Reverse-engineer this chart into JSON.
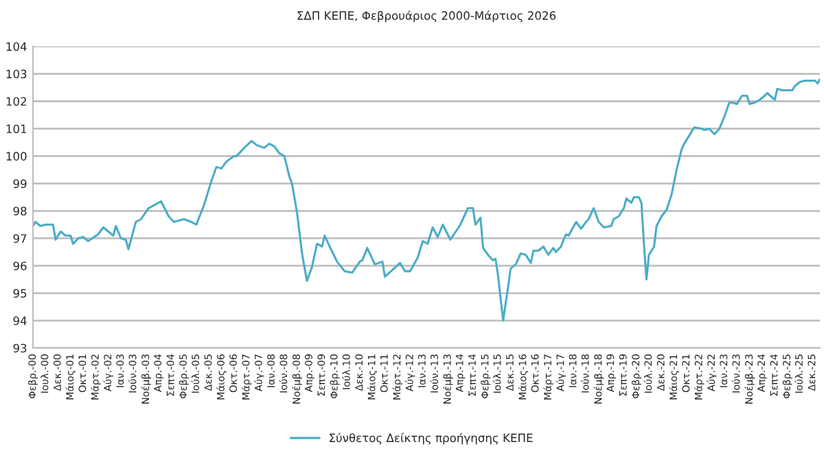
{
  "chart_data": {
    "type": "line",
    "title": "ΣΔΠ ΚΕΠΕ, Φεβρουάριος 2000-Μάρτιος 2026",
    "x": [
      "2000-02",
      "2000-03",
      "2000-05",
      "2000-07",
      "2000-10",
      "2000-11",
      "2001-01",
      "2001-03",
      "2001-05",
      "2001-06",
      "2001-08",
      "2001-10",
      "2001-12",
      "2002-04",
      "2002-06",
      "2002-10",
      "2002-11",
      "2003-01",
      "2003-03",
      "2003-04",
      "2003-07",
      "2003-09",
      "2003-12",
      "2004-02",
      "2004-05",
      "2004-08",
      "2004-10",
      "2005-02",
      "2005-05",
      "2005-07",
      "2005-10",
      "2006-01",
      "2006-03",
      "2006-05",
      "2006-07",
      "2006-10",
      "2006-11",
      "2007-02",
      "2007-05",
      "2007-07",
      "2007-10",
      "2007-12",
      "2008-02",
      "2008-04",
      "2008-06",
      "2008-08",
      "2008-09",
      "2008-11",
      "2009-01",
      "2009-03",
      "2009-05",
      "2009-07",
      "2009-09",
      "2009-10",
      "2009-12",
      "2010-03",
      "2010-06",
      "2010-09",
      "2010-12",
      "2011-01",
      "2011-03",
      "2011-06",
      "2011-09",
      "2011-10",
      "2012-01",
      "2012-04",
      "2012-06",
      "2012-08",
      "2012-11",
      "2013-01",
      "2013-03",
      "2013-05",
      "2013-07",
      "2013-09",
      "2013-12",
      "2014-03",
      "2014-04",
      "2014-07",
      "2014-09",
      "2014-10",
      "2014-12",
      "2015-01",
      "2015-03",
      "2015-05",
      "2015-06",
      "2015-07",
      "2015-09",
      "2015-11",
      "2015-12",
      "2016-02",
      "2016-04",
      "2016-06",
      "2016-08",
      "2016-09",
      "2016-11",
      "2017-01",
      "2017-03",
      "2017-05",
      "2017-06",
      "2017-08",
      "2017-10",
      "2017-11",
      "2018-02",
      "2018-04",
      "2018-06",
      "2018-07",
      "2018-09",
      "2018-11",
      "2019-01",
      "2019-04",
      "2019-05",
      "2019-07",
      "2019-09",
      "2019-10",
      "2019-12",
      "2020-01",
      "2020-03",
      "2020-04",
      "2020-05",
      "2020-06",
      "2020-07",
      "2020-09",
      "2020-10",
      "2020-12",
      "2021-02",
      "2021-04",
      "2021-06",
      "2021-08",
      "2021-09",
      "2021-11",
      "2021-12",
      "2022-01",
      "2022-04",
      "2022-05",
      "2022-07",
      "2022-09",
      "2022-11",
      "2023-01",
      "2023-03",
      "2023-04",
      "2023-06",
      "2023-08",
      "2023-10",
      "2023-11",
      "2024-01",
      "2024-03",
      "2024-05",
      "2024-06",
      "2024-09",
      "2024-10",
      "2024-12",
      "2025-04",
      "2025-05",
      "2025-07",
      "2025-09",
      "2025-11",
      "2026-01",
      "2026-02",
      "2026-03"
    ],
    "series": [
      {
        "name": "Σύνθετος Δείκτης προήγησης ΚΕΠΕ",
        "color": "#4bacc6",
        "values": [
          97.45,
          97.6,
          97.45,
          97.5,
          97.5,
          96.95,
          97.25,
          97.1,
          97.1,
          96.8,
          97.0,
          97.05,
          96.9,
          97.15,
          97.4,
          97.1,
          97.45,
          97.0,
          96.95,
          96.6,
          97.6,
          97.7,
          98.1,
          98.2,
          98.35,
          97.8,
          97.6,
          97.7,
          97.6,
          97.5,
          98.2,
          99.1,
          99.6,
          99.55,
          99.8,
          100.0,
          100.0,
          100.3,
          100.55,
          100.4,
          100.3,
          100.45,
          100.35,
          100.1,
          100.0,
          99.25,
          99.0,
          97.95,
          96.45,
          95.45,
          95.95,
          96.8,
          96.7,
          97.1,
          96.7,
          96.15,
          95.8,
          95.75,
          96.15,
          96.2,
          96.65,
          96.05,
          96.15,
          95.6,
          95.85,
          96.1,
          95.8,
          95.8,
          96.3,
          96.9,
          96.8,
          97.4,
          97.05,
          97.5,
          96.95,
          97.35,
          97.5,
          98.1,
          98.1,
          97.5,
          97.75,
          96.65,
          96.4,
          96.2,
          96.25,
          95.65,
          94.0,
          95.25,
          95.9,
          96.05,
          96.45,
          96.4,
          96.1,
          96.55,
          96.55,
          96.7,
          96.4,
          96.65,
          96.5,
          96.7,
          97.15,
          97.1,
          97.6,
          97.35,
          97.6,
          97.7,
          98.1,
          97.6,
          97.4,
          97.45,
          97.7,
          97.8,
          98.1,
          98.45,
          98.3,
          98.5,
          98.5,
          98.3,
          96.8,
          95.5,
          96.4,
          96.7,
          97.45,
          97.8,
          98.05,
          98.6,
          99.5,
          100.25,
          100.45,
          100.75,
          100.9,
          101.05,
          101.0,
          100.95,
          101.0,
          100.8,
          101.0,
          101.45,
          101.95,
          101.95,
          101.9,
          102.2,
          102.2,
          101.9,
          101.95,
          102.05,
          102.2,
          102.3,
          102.05,
          102.45,
          102.4,
          102.4,
          102.55,
          102.7,
          102.75,
          102.75,
          102.75,
          102.65,
          102.8
        ]
      }
    ],
    "xlim": [
      "2000-02",
      "2026-03"
    ],
    "xticks": [
      {
        "value": "2000-02",
        "label": "Φεβρ.-00"
      },
      {
        "value": "2000-07",
        "label": "Ιουλ.-00"
      },
      {
        "value": "2000-12",
        "label": "Δεκ.-00"
      },
      {
        "value": "2001-05",
        "label": "Μάιος-01"
      },
      {
        "value": "2001-10",
        "label": "Οκτ.-01"
      },
      {
        "value": "2002-03",
        "label": "Μάρτ.-02"
      },
      {
        "value": "2002-08",
        "label": "Αύγ.-02"
      },
      {
        "value": "2003-01",
        "label": "Ιαν.-03"
      },
      {
        "value": "2003-06",
        "label": "Ιούν.-03"
      },
      {
        "value": "2003-11",
        "label": "Νοέμβ.-03"
      },
      {
        "value": "2004-04",
        "label": "Απρ.-04"
      },
      {
        "value": "2004-09",
        "label": "Σεπτ.-04"
      },
      {
        "value": "2005-02",
        "label": "Φεβρ.-05"
      },
      {
        "value": "2005-07",
        "label": "Ιούλ.-05"
      },
      {
        "value": "2005-12",
        "label": "Δεκ.-05"
      },
      {
        "value": "2006-05",
        "label": "Μάιος-06"
      },
      {
        "value": "2006-10",
        "label": "Οκτ.-06"
      },
      {
        "value": "2007-03",
        "label": "Μάρτ.-07"
      },
      {
        "value": "2007-08",
        "label": "Αύγ.-07"
      },
      {
        "value": "2008-01",
        "label": "Ιαν.-08"
      },
      {
        "value": "2008-06",
        "label": "Ιούν.-08"
      },
      {
        "value": "2008-11",
        "label": "Νοέμβ.-08"
      },
      {
        "value": "2009-04",
        "label": "Απρ.-09"
      },
      {
        "value": "2009-09",
        "label": "Σεπτ.-09"
      },
      {
        "value": "2010-02",
        "label": "Φεβρ.-10"
      },
      {
        "value": "2010-07",
        "label": "Ιούλ.10"
      },
      {
        "value": "2010-12",
        "label": "Δεκ.-10"
      },
      {
        "value": "2011-05",
        "label": "Μάιος-11"
      },
      {
        "value": "2011-10",
        "label": "Οκτ.-11"
      },
      {
        "value": "2012-03",
        "label": "Μάρτ.-12"
      },
      {
        "value": "2012-08",
        "label": "Αύγ.-12"
      },
      {
        "value": "2013-01",
        "label": "Ιαν.-13"
      },
      {
        "value": "2013-06",
        "label": "Ιούν.-13"
      },
      {
        "value": "2013-11",
        "label": "Νοέμβ.-13"
      },
      {
        "value": "2014-04",
        "label": "Απρ.-14"
      },
      {
        "value": "2014-09",
        "label": "Σεπτ.-14"
      },
      {
        "value": "2015-02",
        "label": "Φεβρ.-15"
      },
      {
        "value": "2015-07",
        "label": "Ιούλ.-15"
      },
      {
        "value": "2015-12",
        "label": "Δεκ.-15"
      },
      {
        "value": "2016-05",
        "label": "Μάιος-16"
      },
      {
        "value": "2016-10",
        "label": "Οκτ.-16"
      },
      {
        "value": "2017-03",
        "label": "Μάρτ.-17"
      },
      {
        "value": "2017-08",
        "label": "Αύγ.-17"
      },
      {
        "value": "2018-01",
        "label": "Ιαν.-18"
      },
      {
        "value": "2018-06",
        "label": "Ιούν.-18"
      },
      {
        "value": "2018-11",
        "label": "Νοέμβ.-18"
      },
      {
        "value": "2019-04",
        "label": "Απρ.-19"
      },
      {
        "value": "2019-09",
        "label": "Σεπτ.-19"
      },
      {
        "value": "2020-02",
        "label": "Φεβρ.-20"
      },
      {
        "value": "2020-07",
        "label": "Ιούλ.-20"
      },
      {
        "value": "2020-12",
        "label": "Δεκ.-20"
      },
      {
        "value": "2021-05",
        "label": "Μάιος-21"
      },
      {
        "value": "2021-10",
        "label": "Οκτ.-21"
      },
      {
        "value": "2022-03",
        "label": "Μάρτ.-22"
      },
      {
        "value": "2022-08",
        "label": "Αύγ.-22"
      },
      {
        "value": "2023-01",
        "label": "Ιαν.-23"
      },
      {
        "value": "2023-06",
        "label": "Ιούν.-23"
      },
      {
        "value": "2023-11",
        "label": "Νοέμβ.-23"
      },
      {
        "value": "2024-04",
        "label": "Απρ.-24"
      },
      {
        "value": "2024-09",
        "label": "Σεπτ.-24"
      },
      {
        "value": "2025-02",
        "label": "Φεβρ.-25"
      },
      {
        "value": "2025-07",
        "label": "Ιούλ.-25"
      },
      {
        "value": "2025-12",
        "label": "Δεκ.-25"
      }
    ],
    "ylim": [
      93,
      104
    ],
    "yticks": [
      93,
      94,
      95,
      96,
      97,
      98,
      99,
      100,
      101,
      102,
      103,
      104
    ],
    "grid": "y",
    "legend": "bottom",
    "marker": "none",
    "line_style": "solid"
  }
}
